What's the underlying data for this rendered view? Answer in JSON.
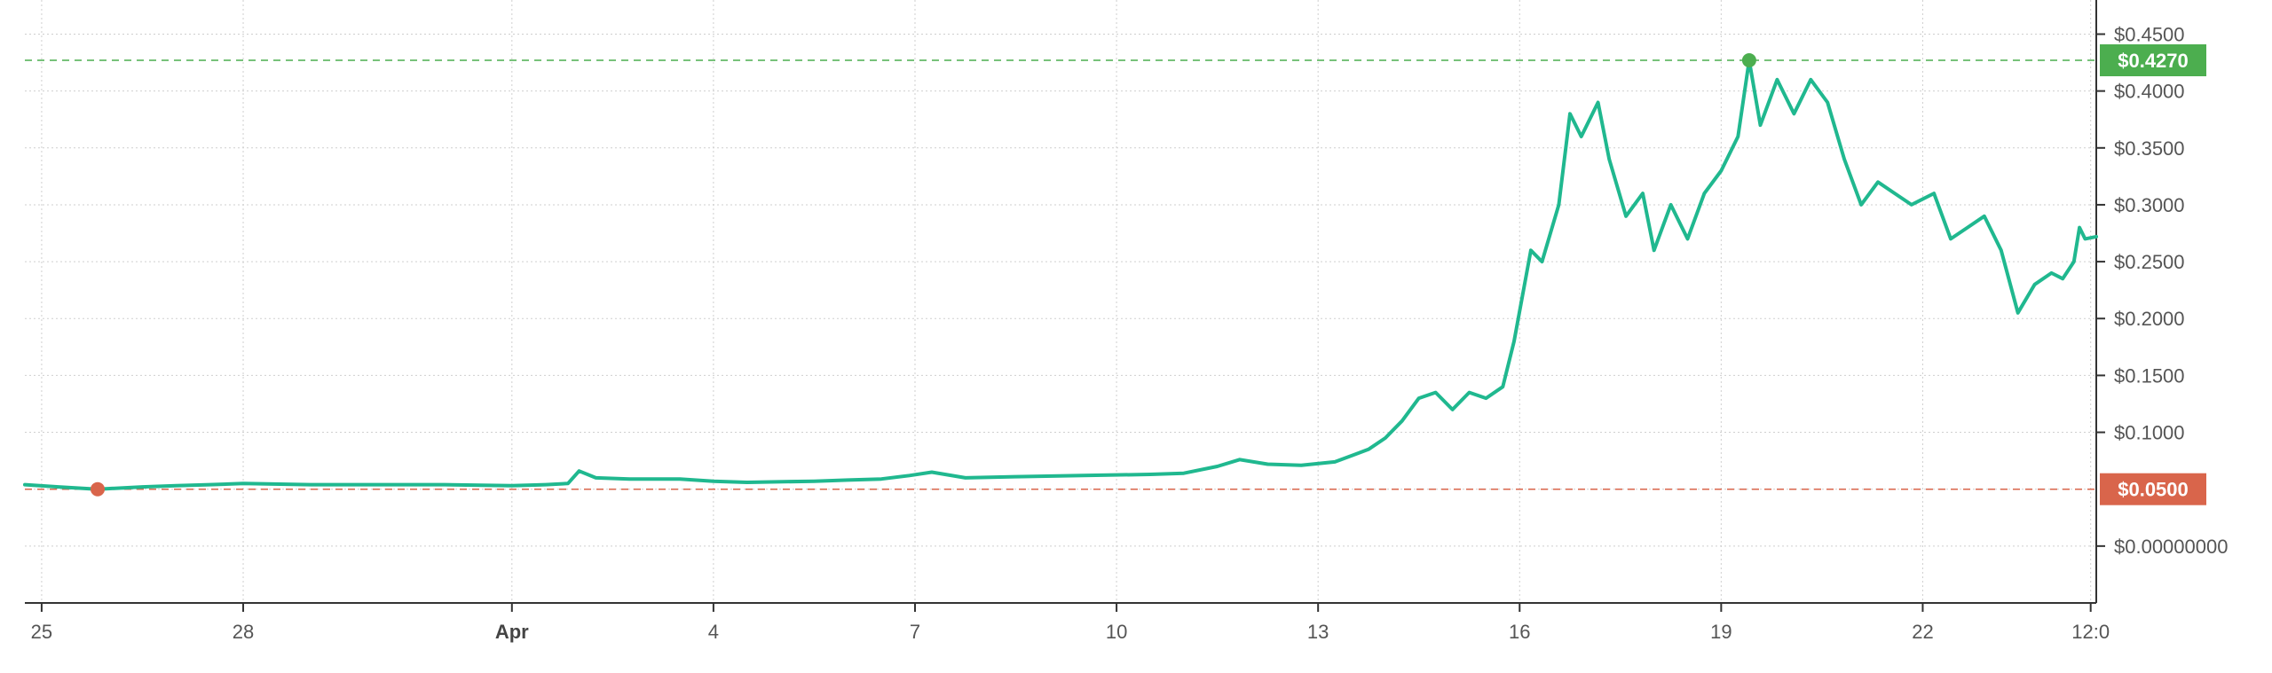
{
  "chart_data": {
    "type": "line",
    "x_ticks": [
      {
        "date": "2025-03-25",
        "label": "25",
        "bold": false
      },
      {
        "date": "2025-03-28",
        "label": "28",
        "bold": false
      },
      {
        "date": "2025-04-01",
        "label": "Apr",
        "bold": true
      },
      {
        "date": "2025-04-04",
        "label": "4",
        "bold": false
      },
      {
        "date": "2025-04-07",
        "label": "7",
        "bold": false
      },
      {
        "date": "2025-04-10",
        "label": "10",
        "bold": false
      },
      {
        "date": "2025-04-13",
        "label": "13",
        "bold": false
      },
      {
        "date": "2025-04-16",
        "label": "16",
        "bold": false
      },
      {
        "date": "2025-04-19",
        "label": "19",
        "bold": false
      },
      {
        "date": "2025-04-22",
        "label": "22",
        "bold": false
      },
      {
        "date": "2025-04-24T12:00",
        "label": "12:0",
        "bold": false
      }
    ],
    "y_ticks": [
      {
        "value": 0.45,
        "label": "$0.4500"
      },
      {
        "value": 0.4,
        "label": "$0.4000"
      },
      {
        "value": 0.35,
        "label": "$0.3500"
      },
      {
        "value": 0.3,
        "label": "$0.3000"
      },
      {
        "value": 0.25,
        "label": "$0.2500"
      },
      {
        "value": 0.2,
        "label": "$0.2000"
      },
      {
        "value": 0.15,
        "label": "$0.1500"
      },
      {
        "value": 0.1,
        "label": "$0.1000"
      },
      {
        "value": 0.0,
        "label": "$0.00000000"
      }
    ],
    "xlim": [
      "2025-03-24T18:00",
      "2025-04-24T14:00"
    ],
    "ylim": [
      -0.05,
      0.48
    ],
    "grid": true,
    "line_color": "#20b88f",
    "max_marker": {
      "date": "2025-04-19T10:00",
      "value": 0.427,
      "label": "$0.4270",
      "color": "#4cae4f"
    },
    "min_marker": {
      "date": "2025-03-25T20:00",
      "value": 0.05,
      "label": "$0.0500",
      "color": "#d9654b"
    },
    "series": [
      {
        "points": [
          [
            "2025-03-24T18:00",
            0.054
          ],
          [
            "2025-03-25T06:00",
            0.052
          ],
          [
            "2025-03-25T20:00",
            0.05
          ],
          [
            "2025-03-26T12:00",
            0.052
          ],
          [
            "2025-03-27T00:00",
            0.053
          ],
          [
            "2025-03-27T12:00",
            0.054
          ],
          [
            "2025-03-28T00:00",
            0.055
          ],
          [
            "2025-03-29T00:00",
            0.054
          ],
          [
            "2025-03-30T00:00",
            0.054
          ],
          [
            "2025-03-31T00:00",
            0.054
          ],
          [
            "2025-04-01T00:00",
            0.053
          ],
          [
            "2025-04-01T12:00",
            0.054
          ],
          [
            "2025-04-01T20:00",
            0.055
          ],
          [
            "2025-04-02T00:00",
            0.066
          ],
          [
            "2025-04-02T06:00",
            0.06
          ],
          [
            "2025-04-02T18:00",
            0.059
          ],
          [
            "2025-04-03T12:00",
            0.059
          ],
          [
            "2025-04-04T00:00",
            0.057
          ],
          [
            "2025-04-04T12:00",
            0.056
          ],
          [
            "2025-04-05T12:00",
            0.057
          ],
          [
            "2025-04-06T00:00",
            0.058
          ],
          [
            "2025-04-06T12:00",
            0.059
          ],
          [
            "2025-04-06T22:00",
            0.062
          ],
          [
            "2025-04-07T06:00",
            0.065
          ],
          [
            "2025-04-07T18:00",
            0.06
          ],
          [
            "2025-04-08T12:00",
            0.061
          ],
          [
            "2025-04-09T12:00",
            0.062
          ],
          [
            "2025-04-10T12:00",
            0.063
          ],
          [
            "2025-04-11T00:00",
            0.064
          ],
          [
            "2025-04-11T12:00",
            0.07
          ],
          [
            "2025-04-11T20:00",
            0.076
          ],
          [
            "2025-04-12T06:00",
            0.072
          ],
          [
            "2025-04-12T18:00",
            0.071
          ],
          [
            "2025-04-13T06:00",
            0.074
          ],
          [
            "2025-04-13T18:00",
            0.085
          ],
          [
            "2025-04-14T00:00",
            0.095
          ],
          [
            "2025-04-14T06:00",
            0.11
          ],
          [
            "2025-04-14T12:00",
            0.13
          ],
          [
            "2025-04-14T18:00",
            0.135
          ],
          [
            "2025-04-15T00:00",
            0.12
          ],
          [
            "2025-04-15T06:00",
            0.135
          ],
          [
            "2025-04-15T12:00",
            0.13
          ],
          [
            "2025-04-15T18:00",
            0.14
          ],
          [
            "2025-04-15T22:00",
            0.18
          ],
          [
            "2025-04-16T04:00",
            0.26
          ],
          [
            "2025-04-16T08:00",
            0.25
          ],
          [
            "2025-04-16T14:00",
            0.3
          ],
          [
            "2025-04-16T18:00",
            0.38
          ],
          [
            "2025-04-16T22:00",
            0.36
          ],
          [
            "2025-04-17T04:00",
            0.39
          ],
          [
            "2025-04-17T08:00",
            0.34
          ],
          [
            "2025-04-17T14:00",
            0.29
          ],
          [
            "2025-04-17T20:00",
            0.31
          ],
          [
            "2025-04-18T00:00",
            0.26
          ],
          [
            "2025-04-18T06:00",
            0.3
          ],
          [
            "2025-04-18T12:00",
            0.27
          ],
          [
            "2025-04-18T18:00",
            0.31
          ],
          [
            "2025-04-19T00:00",
            0.33
          ],
          [
            "2025-04-19T06:00",
            0.36
          ],
          [
            "2025-04-19T10:00",
            0.427
          ],
          [
            "2025-04-19T14:00",
            0.37
          ],
          [
            "2025-04-19T20:00",
            0.41
          ],
          [
            "2025-04-20T02:00",
            0.38
          ],
          [
            "2025-04-20T08:00",
            0.41
          ],
          [
            "2025-04-20T14:00",
            0.39
          ],
          [
            "2025-04-20T20:00",
            0.34
          ],
          [
            "2025-04-21T02:00",
            0.3
          ],
          [
            "2025-04-21T08:00",
            0.32
          ],
          [
            "2025-04-21T14:00",
            0.31
          ],
          [
            "2025-04-21T20:00",
            0.3
          ],
          [
            "2025-04-22T04:00",
            0.31
          ],
          [
            "2025-04-22T10:00",
            0.27
          ],
          [
            "2025-04-22T16:00",
            0.28
          ],
          [
            "2025-04-22T22:00",
            0.29
          ],
          [
            "2025-04-23T04:00",
            0.26
          ],
          [
            "2025-04-23T10:00",
            0.205
          ],
          [
            "2025-04-23T16:00",
            0.23
          ],
          [
            "2025-04-23T22:00",
            0.24
          ],
          [
            "2025-04-24T02:00",
            0.235
          ],
          [
            "2025-04-24T06:00",
            0.25
          ],
          [
            "2025-04-24T08:00",
            0.28
          ],
          [
            "2025-04-24T10:00",
            0.27
          ],
          [
            "2025-04-24T14:00",
            0.272
          ]
        ]
      }
    ]
  }
}
